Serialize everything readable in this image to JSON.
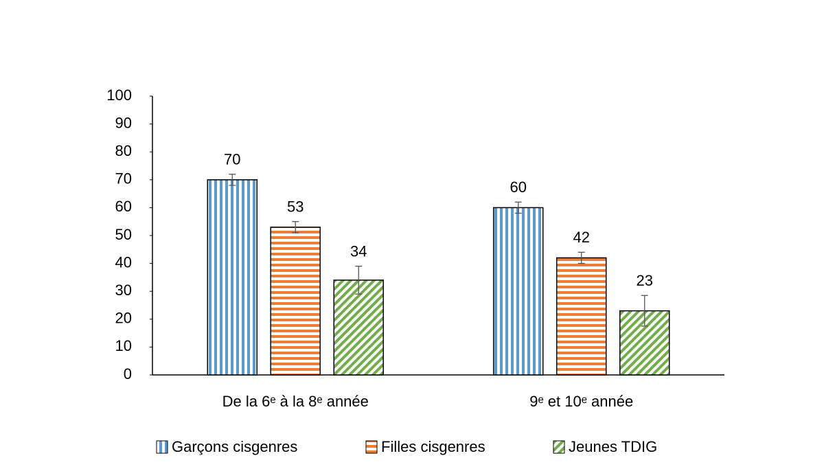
{
  "chart_data": {
    "type": "bar",
    "categories": [
      "De la 6ᵉ à la 8ᵉ année",
      "9ᵉ et 10ᵉ année"
    ],
    "series": [
      {
        "name": "Garçons cisgenres",
        "color": "#5b9bd5",
        "pattern": "vertical",
        "values": [
          70,
          60
        ],
        "errors": [
          2,
          2
        ]
      },
      {
        "name": "Filles cisgenres",
        "color": "#ed7d31",
        "pattern": "horizontal",
        "values": [
          53,
          42
        ],
        "errors": [
          2,
          2
        ]
      },
      {
        "name": "Jeunes TDIG",
        "color": "#70ad47",
        "pattern": "diagonal",
        "values": [
          34,
          23
        ],
        "errors": [
          5,
          5.5
        ]
      }
    ],
    "ylim": [
      0,
      100
    ],
    "yticks": [
      0,
      10,
      20,
      30,
      40,
      50,
      60,
      70,
      80,
      90,
      100
    ],
    "legend": "bottom"
  }
}
